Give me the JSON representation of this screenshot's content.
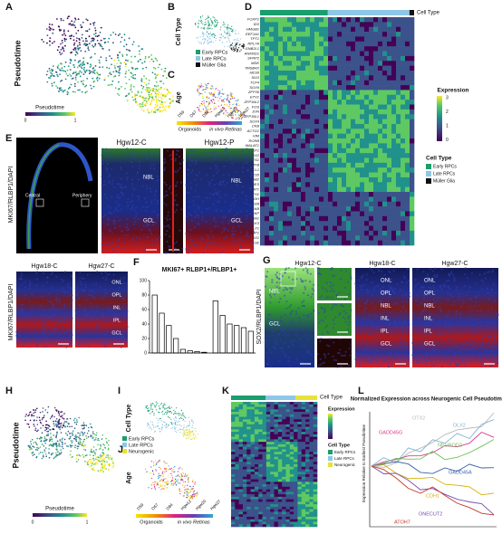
{
  "figure": {
    "panel_labels": [
      "A",
      "B",
      "C",
      "D",
      "E",
      "F",
      "G",
      "H",
      "I",
      "J",
      "K",
      "L"
    ],
    "a": {
      "y_title": "Pseudotime",
      "colorbar_title": "Pseudotime",
      "colorbar_ticks": [
        0,
        1
      ]
    },
    "b": {
      "y_title": "Cell Type",
      "legend": [
        "Early RPCs",
        "Late RPCs",
        "Müller Glia"
      ]
    },
    "c": {
      "y_title": "Age",
      "ages": [
        "D59",
        "D67",
        "D84",
        "Hgw12",
        "Hgw20",
        "Hgw27"
      ],
      "groups": [
        "Organoids",
        "in vivo Retinas"
      ]
    },
    "d": {
      "column_title": "Cell Type",
      "genes": [
        "FOXP1",
        "ID3",
        "HMGB1",
        "EEF1A1",
        "TPT1",
        "RPL7A",
        "GNB2L1",
        "ANKRD1",
        "SFRP2",
        "MDK",
        "TMSB4X",
        "HES6",
        "SIX3",
        "TCF4",
        "SOX9",
        "ZFP36",
        "ETV1",
        "ZFP36L2",
        "FOS",
        "JUN",
        "ZFP36L1",
        "SOX4",
        "CKB",
        "ACTG1",
        "VIM",
        "RORB",
        "MALAT1",
        "NR2F1",
        "SOX2",
        "HES1",
        "MYB",
        "ASCL1",
        "HES5",
        "HMGB2",
        "NES",
        "SFRP1",
        "FTH1",
        "GAPDH",
        "FRZB",
        "CRYAB",
        "GFAP",
        "CYP26A1",
        "DKK3",
        "CRLF1",
        "RLBP1",
        "PRDX1",
        "APOE"
      ],
      "expression_title": "Expression",
      "expression_ticks": [
        3,
        2,
        1,
        0
      ],
      "celltype_title": "Cell Type",
      "celltype_legend": [
        "Early RPCs",
        "Late RPCs",
        "Müller Glia"
      ]
    },
    "e": {
      "stain": "MKI67/RLBP1/DAPI",
      "regions": [
        "Central",
        "Periphery"
      ],
      "images": [
        "Hgw12-C",
        "Hgw12-P",
        "Hgw18-C",
        "Hgw27-C"
      ],
      "layers_early": [
        "NBL",
        "GCL"
      ],
      "layers_late": [
        "ONL",
        "OPL",
        "INL",
        "IPL",
        "GCL"
      ]
    },
    "f": {
      "title": "MKI67+ RLBP1+/RLBP1+",
      "values": [
        80,
        55,
        38,
        20,
        5,
        3,
        2,
        1,
        72,
        52,
        40,
        38,
        35,
        30
      ],
      "ylim": [
        0,
        100
      ],
      "yticks": [
        0,
        20,
        40,
        60,
        80,
        100
      ]
    },
    "g": {
      "stain": "SOX2/RLBP1/DAPI",
      "images": [
        "Hgw12-C",
        "Hgw18-C",
        "Hgw27-C"
      ],
      "layers": [
        "ONL",
        "OPL",
        "NBL",
        "INL",
        "IPL",
        "GCL"
      ]
    },
    "h": {
      "y_title": "Pseudotime",
      "colorbar_title": "Pseudotime",
      "colorbar_ticks": [
        0,
        1
      ]
    },
    "i": {
      "y_title": "Cell Type",
      "legend": [
        "Early RPCs",
        "Late RPCs",
        "Neurogenic"
      ]
    },
    "j": {
      "y_title": "Age",
      "ages": [
        "D59",
        "D67",
        "D84",
        "Hgw12",
        "Hgw20",
        "Hgw27"
      ],
      "groups": [
        "Organoids",
        "in vivo Retinas"
      ]
    },
    "k": {
      "column_title": "Cell Type",
      "expression_title": "Expression",
      "celltype_title": "Cell Type",
      "celltype_legend": [
        "Early RPCs",
        "Late RPCs",
        "Neurogenic"
      ]
    },
    "l": {
      "title": "Normalized Expression across Neurogenic Cell Pseudotime",
      "y_title": "Expression Relative to Earliest Pseudotime",
      "genes": [
        {
          "name": "OTX2",
          "color": "#b9b9b9"
        },
        {
          "name": "DLX2",
          "color": "#7fb3d5"
        },
        {
          "name": "GADD45G",
          "color": "#d63a8a"
        },
        {
          "name": "NEUROD2",
          "color": "#6fbf5a"
        },
        {
          "name": "GADD45A",
          "color": "#3a5fa8"
        },
        {
          "name": "CDH1",
          "color": "#d4b106"
        },
        {
          "name": "ONECUT2",
          "color": "#7a4ab0"
        },
        {
          "name": "ATOH7",
          "color": "#c0392b"
        }
      ]
    }
  }
}
